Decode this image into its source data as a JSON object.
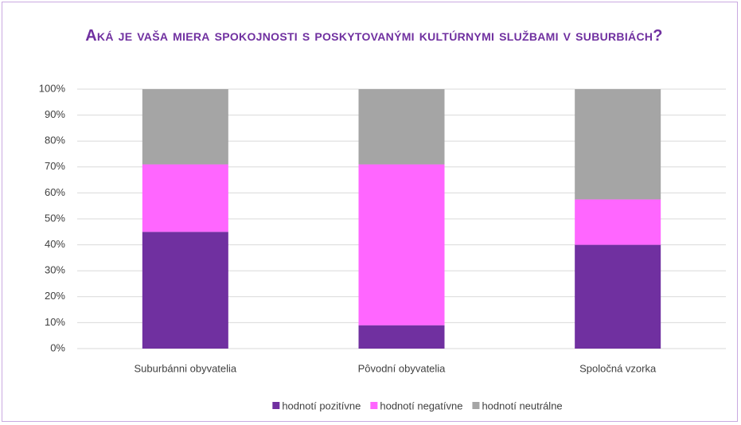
{
  "chart_data": {
    "type": "stacked_bar",
    "title": "Aká je vaša miera spokojnosti s poskytovanými kultúrnymi službami v suburbiách?",
    "categories": [
      "Suburbánni obyvatelia",
      "Pôvodní obyvatelia",
      "Spoločná vzorka"
    ],
    "series": [
      {
        "name": "hodnotí pozitívne",
        "color": "#7030a0",
        "values": [
          45,
          9,
          40
        ]
      },
      {
        "name": "hodnotí negatívne",
        "color": "#ff66ff",
        "values": [
          26,
          62,
          17.5
        ]
      },
      {
        "name": "hodnotí neutrálne",
        "color": "#a5a5a5",
        "values": [
          29,
          29,
          42.5
        ]
      }
    ],
    "ylim": [
      0,
      100
    ],
    "yticks": [
      {
        "value": 0,
        "label": "0%"
      },
      {
        "value": 10,
        "label": "10%"
      },
      {
        "value": 20,
        "label": "20%"
      },
      {
        "value": 30,
        "label": "30%"
      },
      {
        "value": 40,
        "label": "40%"
      },
      {
        "value": 50,
        "label": "50%"
      },
      {
        "value": 60,
        "label": "60%"
      },
      {
        "value": 70,
        "label": "70%"
      },
      {
        "value": 80,
        "label": "80%"
      },
      {
        "value": 90,
        "label": "90%"
      },
      {
        "value": 100,
        "label": "100%"
      }
    ],
    "grid": true,
    "legend": "bottom"
  }
}
